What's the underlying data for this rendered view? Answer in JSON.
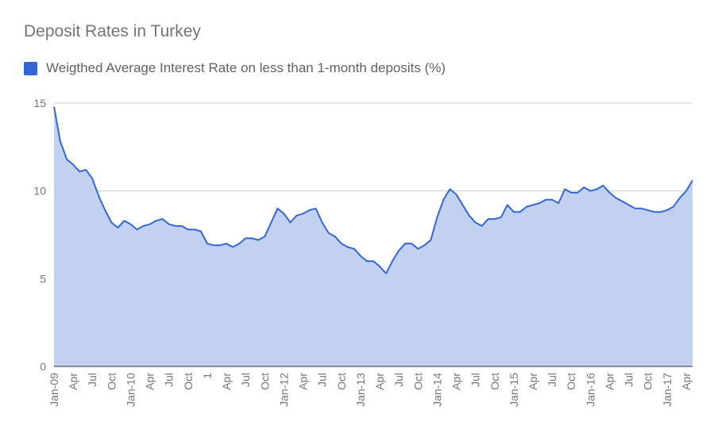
{
  "chart_data": {
    "type": "area",
    "title": "Deposit Rates in Turkey",
    "xlabel": "",
    "ylabel": "",
    "ylim": [
      0,
      15
    ],
    "yticks": [
      0,
      5,
      10,
      15
    ],
    "grid": true,
    "legend_position": "top-left",
    "colors": {
      "line": "#3467d6",
      "fill": "#c2d1f0",
      "grid": "#cccccc",
      "baseline": "#333333"
    },
    "series": [
      {
        "name": "Weigthed Average Interest Rate on less than 1-month deposits (%)",
        "values": [
          14.8,
          12.8,
          11.8,
          11.5,
          11.1,
          11.2,
          10.7,
          9.7,
          8.9,
          8.2,
          7.9,
          8.3,
          8.1,
          7.8,
          8.0,
          8.1,
          8.3,
          8.4,
          8.1,
          8.0,
          8.0,
          7.8,
          7.8,
          7.7,
          7.0,
          6.9,
          6.9,
          7.0,
          6.8,
          7.0,
          7.3,
          7.3,
          7.2,
          7.4,
          8.2,
          9.0,
          8.7,
          8.2,
          8.6,
          8.7,
          8.9,
          9.0,
          8.2,
          7.6,
          7.4,
          7.0,
          6.8,
          6.7,
          6.3,
          6.0,
          6.0,
          5.7,
          5.3,
          6.0,
          6.6,
          7.0,
          7.0,
          6.7,
          6.9,
          7.2,
          8.5,
          9.5,
          10.1,
          9.8,
          9.2,
          8.6,
          8.2,
          8.0,
          8.4,
          8.4,
          8.5,
          9.2,
          8.8,
          8.8,
          9.1,
          9.2,
          9.3,
          9.5,
          9.5,
          9.3,
          10.1,
          9.9,
          9.9,
          10.2,
          10.0,
          10.1,
          10.3,
          9.9,
          9.6,
          9.4,
          9.2,
          9.0,
          9.0,
          8.9,
          8.8,
          8.8,
          8.9,
          9.1,
          9.6,
          10.0,
          10.6
        ]
      }
    ],
    "x_tick_labels": [
      {
        "i": 0,
        "label": "Jan-09"
      },
      {
        "i": 3,
        "label": "Apr"
      },
      {
        "i": 6,
        "label": "Jul"
      },
      {
        "i": 9,
        "label": "Oct"
      },
      {
        "i": 12,
        "label": "Jan-10"
      },
      {
        "i": 15,
        "label": "Apr"
      },
      {
        "i": 18,
        "label": "Jul"
      },
      {
        "i": 21,
        "label": "Oct"
      },
      {
        "i": 24,
        "label": "1"
      },
      {
        "i": 27,
        "label": "Apr"
      },
      {
        "i": 30,
        "label": "Jul"
      },
      {
        "i": 33,
        "label": "Oct"
      },
      {
        "i": 36,
        "label": "Jan-12"
      },
      {
        "i": 39,
        "label": "Apr"
      },
      {
        "i": 42,
        "label": "Jul"
      },
      {
        "i": 45,
        "label": "Oct"
      },
      {
        "i": 48,
        "label": "Jan-13"
      },
      {
        "i": 51,
        "label": "Apr"
      },
      {
        "i": 54,
        "label": "Jul"
      },
      {
        "i": 57,
        "label": "Oct"
      },
      {
        "i": 60,
        "label": "Jan-14"
      },
      {
        "i": 63,
        "label": "Apr"
      },
      {
        "i": 66,
        "label": "Jul"
      },
      {
        "i": 69,
        "label": "Oct"
      },
      {
        "i": 72,
        "label": "Jan-15"
      },
      {
        "i": 75,
        "label": "Apr"
      },
      {
        "i": 78,
        "label": "Jul"
      },
      {
        "i": 81,
        "label": "Oct"
      },
      {
        "i": 84,
        "label": "Jan-16"
      },
      {
        "i": 87,
        "label": "Apr"
      },
      {
        "i": 90,
        "label": "Jul"
      },
      {
        "i": 93,
        "label": "Oct"
      },
      {
        "i": 96,
        "label": "Jan-17"
      },
      {
        "i": 99,
        "label": "Apr"
      }
    ]
  }
}
